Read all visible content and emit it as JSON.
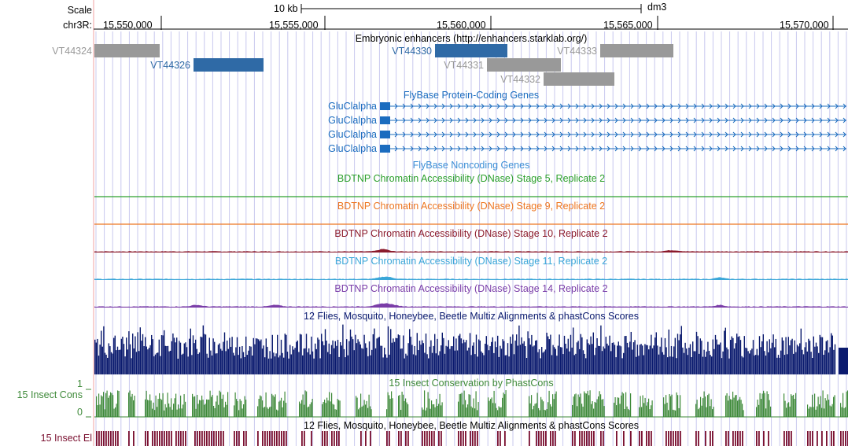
{
  "ruler": {
    "scale_label": "Scale",
    "scale_bar_label": "10 kb",
    "assembly": "dm3",
    "chrom_label": "chr3R:",
    "positions": [
      "15,550,000",
      "15,555,000",
      "15,560,000",
      "15,565,000",
      "15,570,000"
    ]
  },
  "tracks": {
    "enhancers": {
      "title": "Embryonic enhancers (http://enhancers.starklab.org/)",
      "items": [
        {
          "name": "VT44324",
          "color": "#999999"
        },
        {
          "name": "VT44326",
          "color": "#2f6aa6"
        },
        {
          "name": "VT44330",
          "color": "#2f6aa6"
        },
        {
          "name": "VT44331",
          "color": "#999999"
        },
        {
          "name": "VT44332",
          "color": "#999999"
        },
        {
          "name": "VT44333",
          "color": "#999999"
        }
      ]
    },
    "coding_genes": {
      "title": "FlyBase Protein-Coding Genes",
      "color": "#1b6cbf",
      "genes": [
        "GluClalpha",
        "GluClalpha",
        "GluClalpha",
        "GluClalpha"
      ]
    },
    "noncoding_genes": {
      "title": "FlyBase Noncoding Genes",
      "color": "#3d8fd6"
    },
    "dnase": [
      {
        "title": "BDTNP Chromatin Accessibility (DNase) Stage 5, Replicate 2",
        "color": "#2ca02c"
      },
      {
        "title": "BDTNP Chromatin Accessibility (DNase) Stage 9, Replicate 2",
        "color": "#ee7722"
      },
      {
        "title": "BDTNP Chromatin Accessibility (DNase) Stage 10, Replicate 2",
        "color": "#8b1a2b"
      },
      {
        "title": "BDTNP Chromatin Accessibility (DNase) Stage 11, Replicate 2",
        "color": "#3aa6d8"
      },
      {
        "title": "BDTNP Chromatin Accessibility (DNase) Stage 14, Replicate 2",
        "color": "#7a3da8"
      }
    ],
    "multiz": {
      "title": "12 Flies, Mosquito, Honeybee, Beetle Multiz Alignments & phastCons Scores",
      "color": "#0a1a6e"
    },
    "phastcons": {
      "title": "15 Insect Conservation by PhastCons",
      "side_label": "15 Insect Cons",
      "y_max": "1",
      "y_min": "0",
      "color": "#3f8a3a"
    },
    "elements": {
      "title": "12 Flies, Mosquito, Honeybee, Beetle Multiz Alignments & phastCons Scores",
      "side_label": "15 Insect El",
      "color": "#7a1030"
    }
  }
}
